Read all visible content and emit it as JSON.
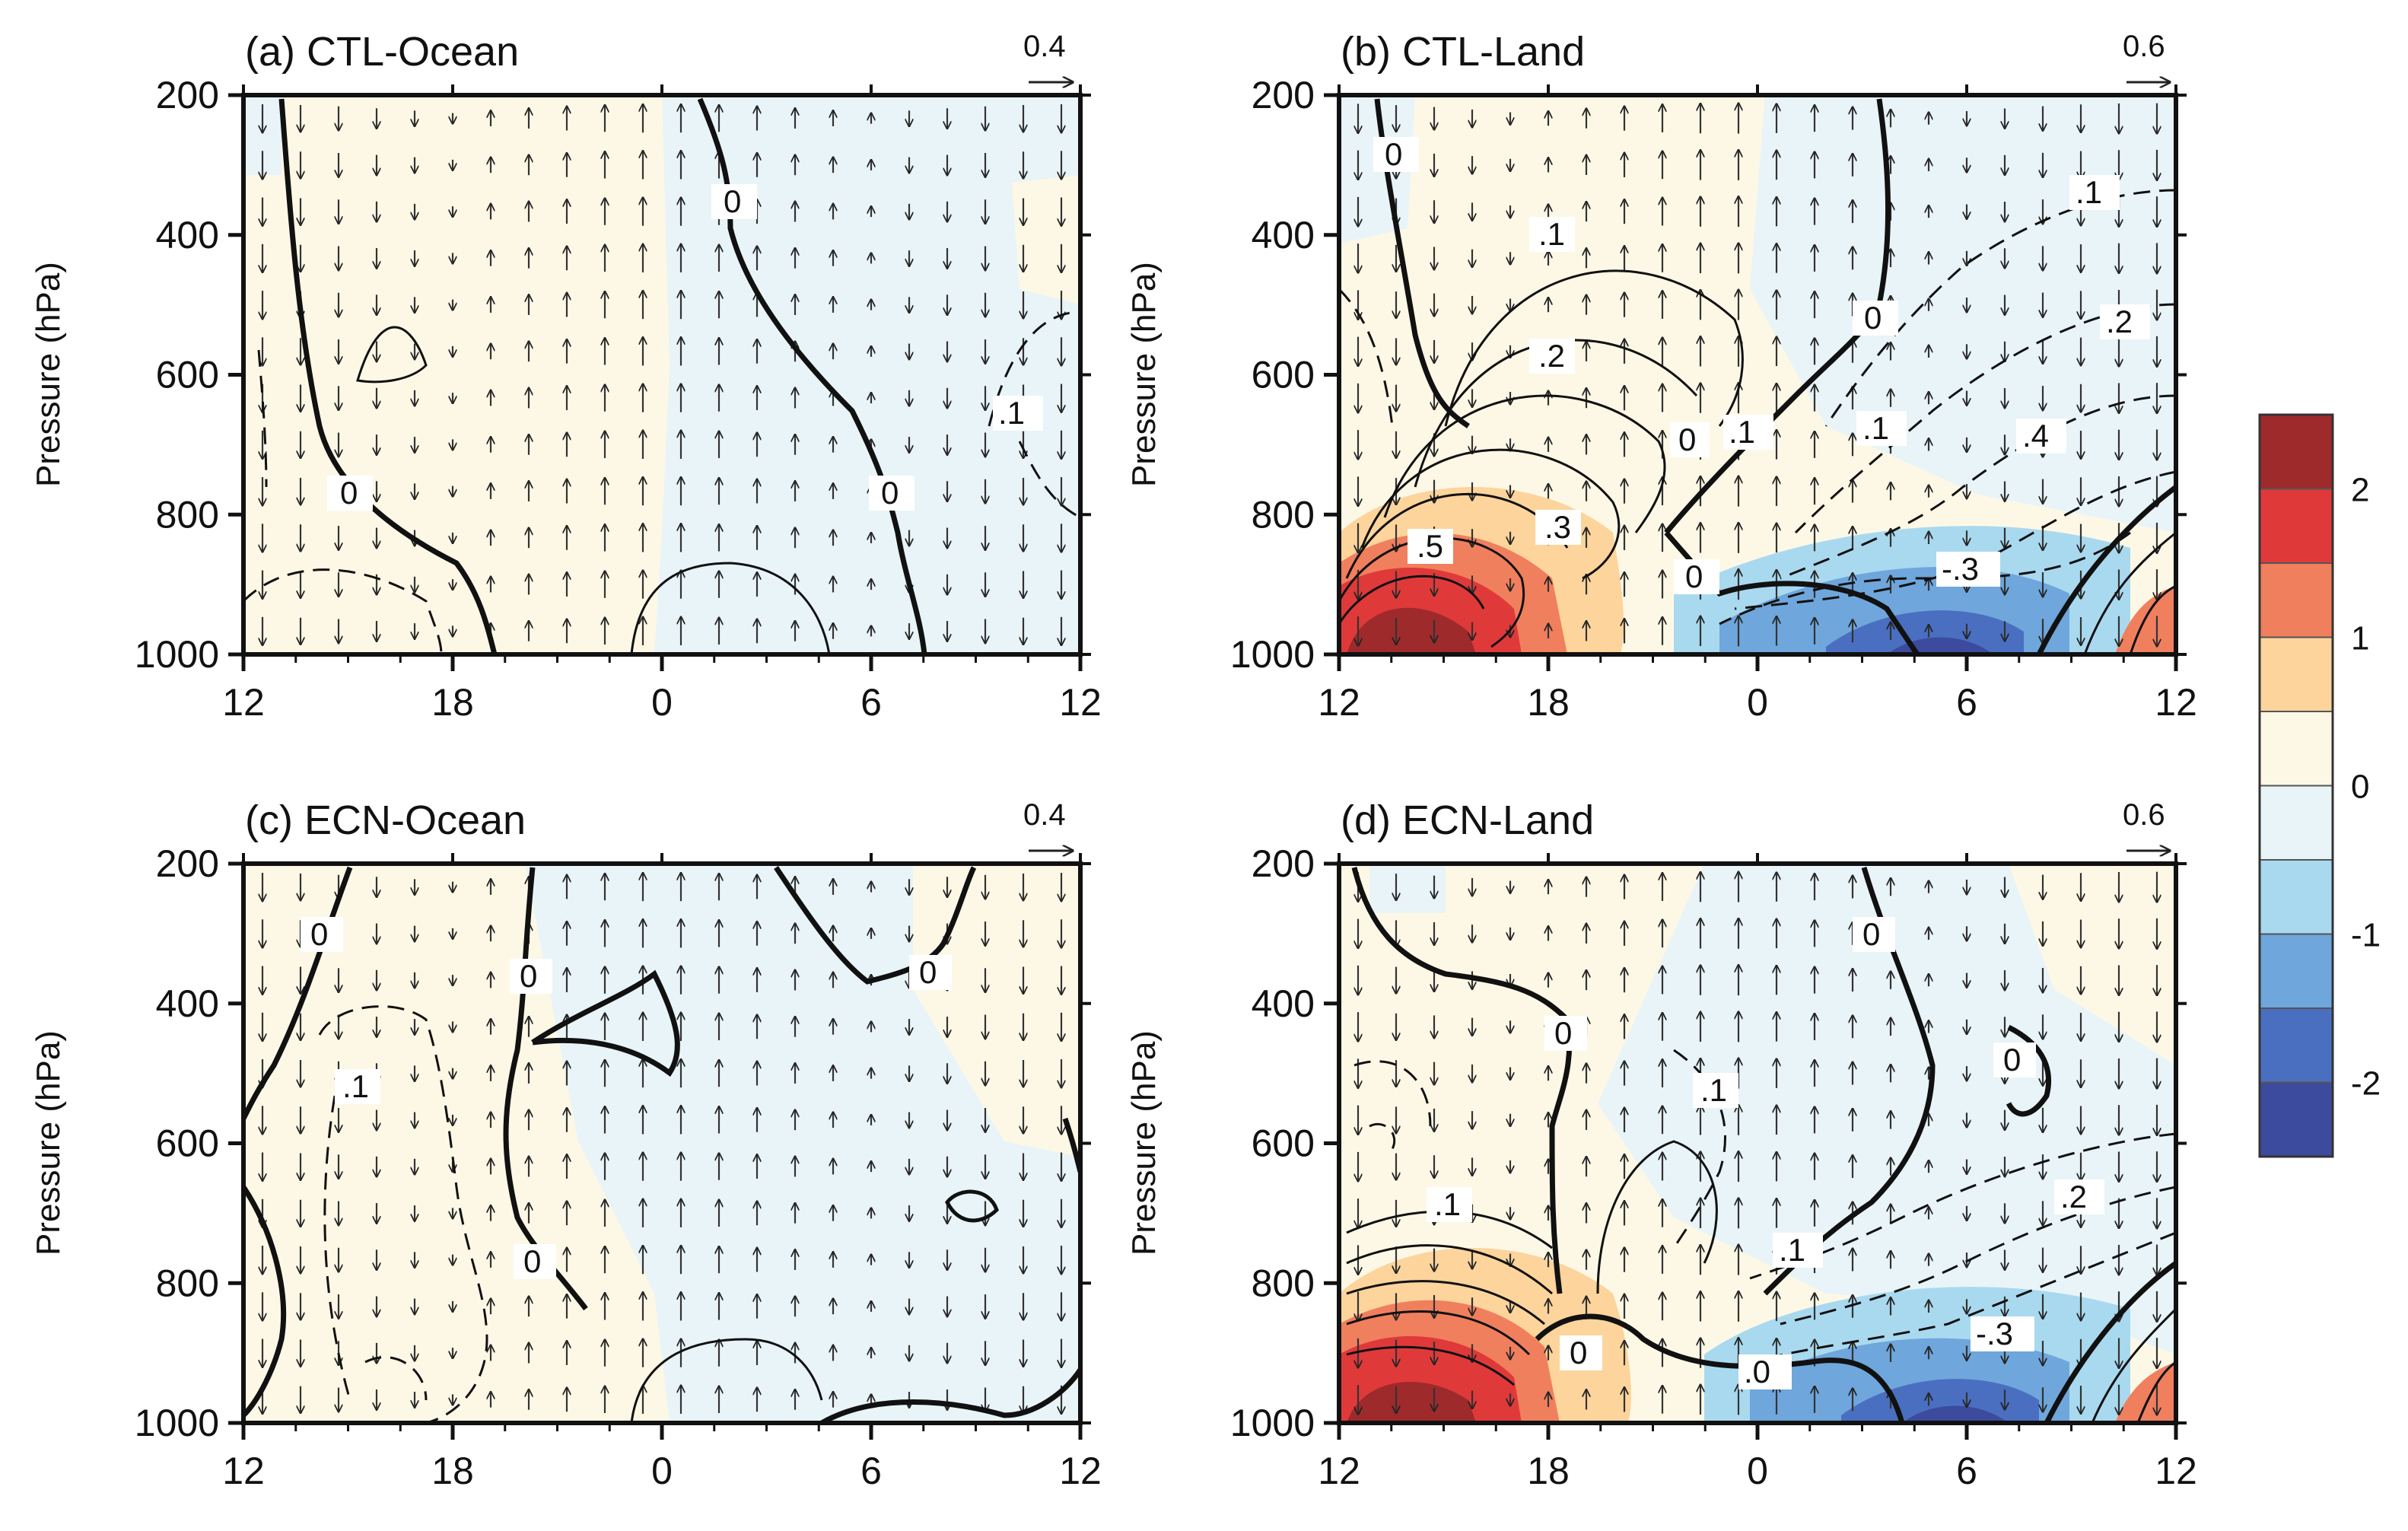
{
  "chart_data": {
    "type": "heatmap",
    "description_units": {
      "x_ticks": [
        "12",
        "18",
        "0",
        "6",
        "12"
      ],
      "y_ticks": [
        "200",
        "400",
        "600",
        "800",
        "1000"
      ],
      "ylabel": "Pressure (hPa)"
    },
    "colorbar": {
      "ticks": [
        "2",
        "1",
        "0",
        "-1",
        "-2"
      ],
      "colors": [
        "#9e2a2b",
        "#e0393a",
        "#f07f5e",
        "#fcd49c",
        "#fdf8e6",
        "#e8f4f8",
        "#a9d9ef",
        "#6fa6db",
        "#4a6fc0",
        "#3c4b9e"
      ]
    },
    "panels": [
      {
        "id": "a",
        "title": "(a) CTL-Ocean",
        "ref_vector": "0.4",
        "contour_labels": [
          "0",
          "0",
          "0",
          ".1"
        ],
        "shading": "weak warm (0 to 0.5) west of 0 hour, weak cool (0 to -0.5) east"
      },
      {
        "id": "b",
        "title": "(b) CTL-Land",
        "ref_vector": "0.6",
        "contour_labels": [
          "0",
          ".1",
          ".2",
          ".3",
          ".5",
          "0",
          ".1",
          ".2",
          ".1",
          ".4",
          "0",
          ".1",
          "-.3",
          "0"
        ],
        "shading": "strong warm near surface 12-18, strong cool near surface 3-8"
      },
      {
        "id": "c",
        "title": "(c) ECN-Ocean",
        "ref_vector": "0.4",
        "contour_labels": [
          "0",
          "0",
          "0",
          ".1",
          "0"
        ],
        "shading": "weak warm west, weak cool east"
      },
      {
        "id": "d",
        "title": "(d) ECN-Land",
        "ref_vector": "0.6",
        "contour_labels": [
          "0",
          "0",
          ".1",
          ".1",
          "0",
          ".0",
          ".1",
          ".2",
          "-.3",
          "0"
        ],
        "shading": "strong warm near surface 12-18, strong cool near surface 3-8"
      }
    ]
  }
}
